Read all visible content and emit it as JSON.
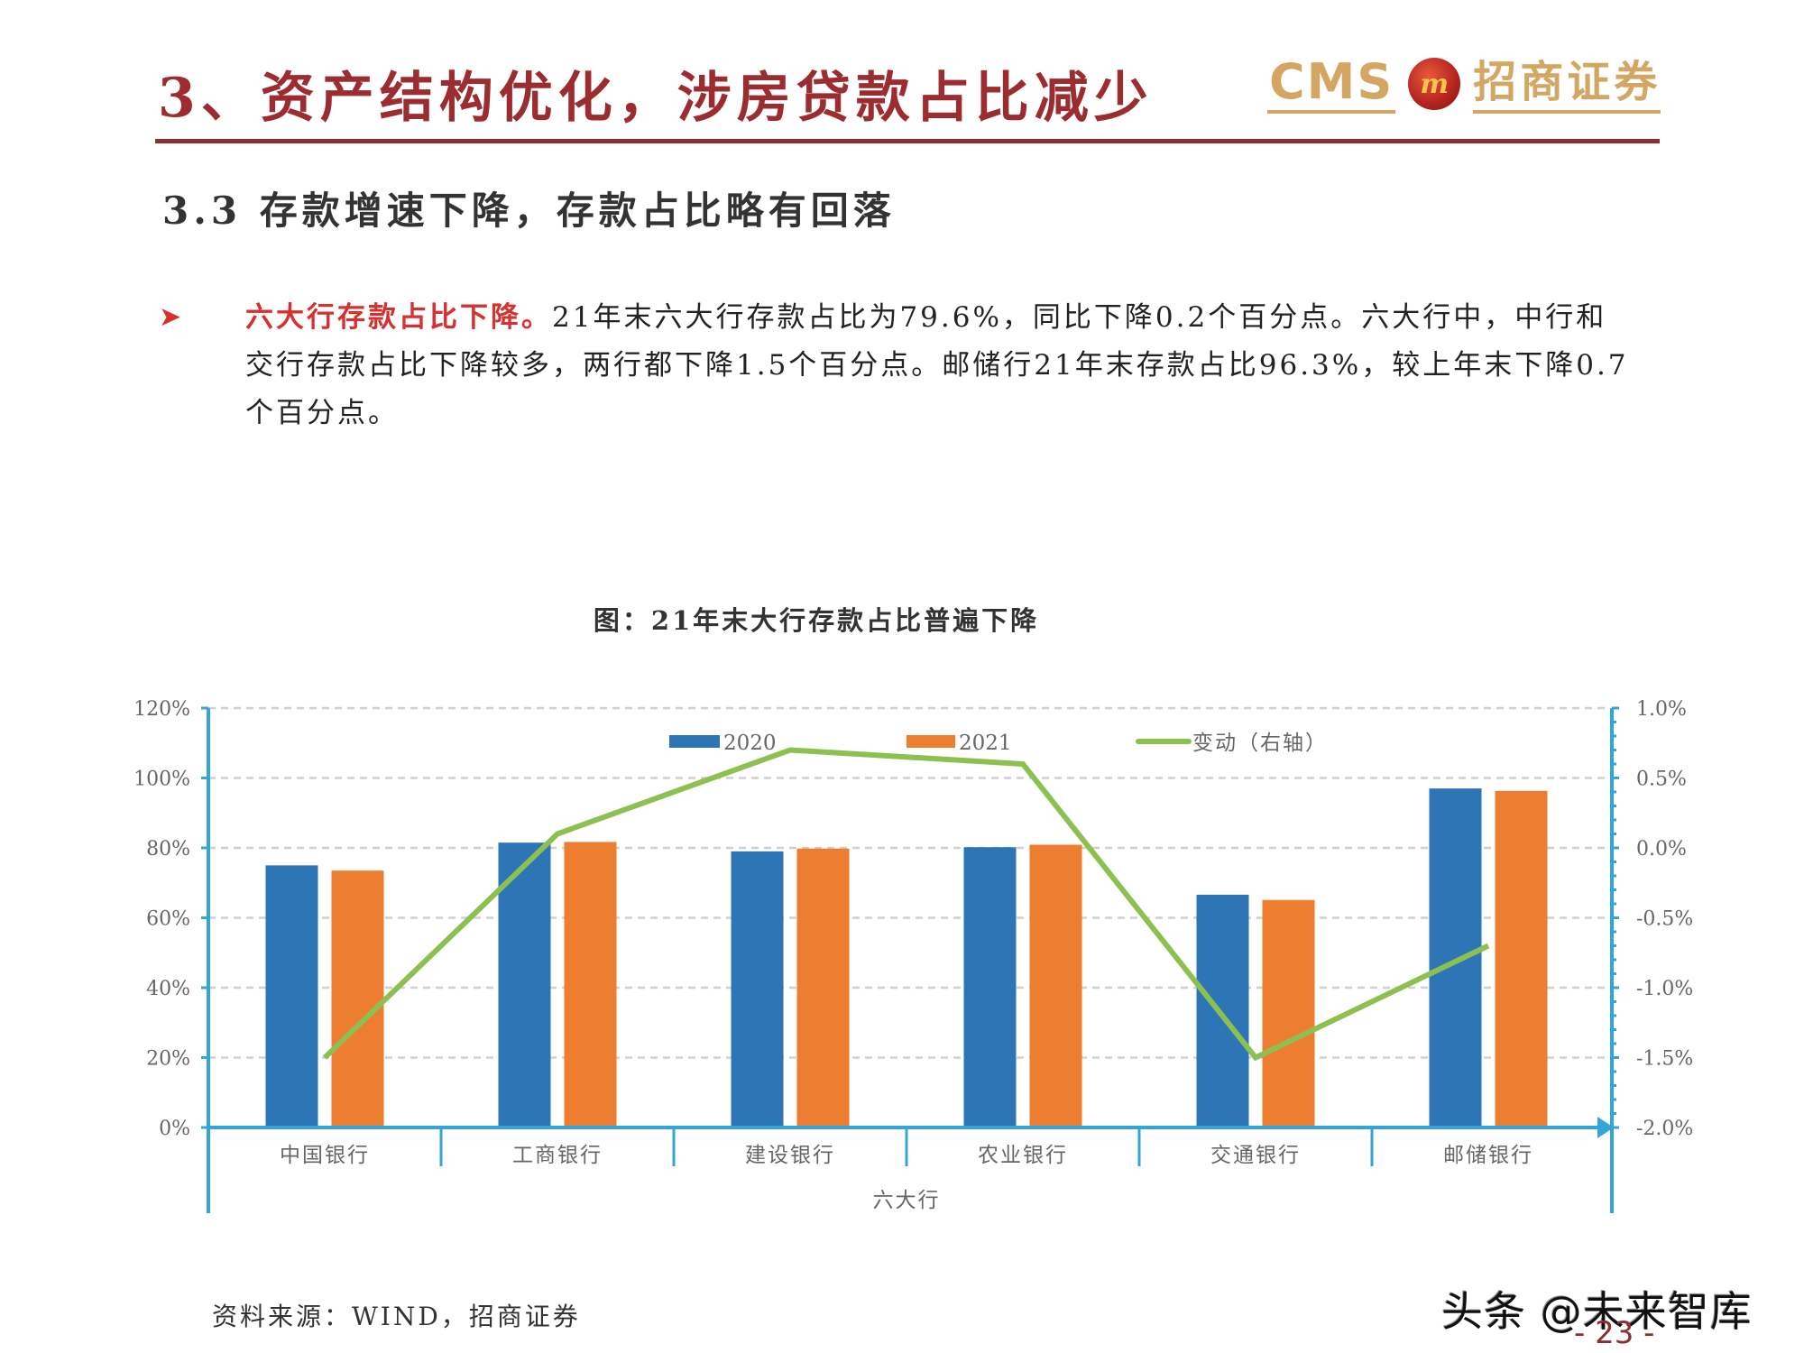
{
  "header": {
    "title": "3、资产结构优化，涉房贷款占比减少",
    "logo": {
      "latin": "CMS",
      "mark": "m",
      "chinese": "招商证券"
    }
  },
  "section": {
    "heading": "3.3 存款增速下降，存款占比略有回落"
  },
  "bullet": {
    "highlight": "六大行存款占比下降。",
    "text": "21年末六大行存款占比为79.6%，同比下降0.2个百分点。六大行中，中行和交行存款占比下降较多，两行都下降1.5个百分点。邮储行21年末存款占比96.3%，较上年末下降0.7个百分点。"
  },
  "colors": {
    "title_red": "#9b2c2f",
    "highlight_red": "#d6312f",
    "series_2020": "#2e75b6",
    "series_2021": "#ed7d31",
    "series_change": "#8cc152",
    "axis": "#33a5d8",
    "gold": "#d3a661"
  },
  "chart_data": {
    "type": "bar",
    "title": "图：21年末大行存款占比普遍下降",
    "categories": [
      "中国银行",
      "工商银行",
      "建设银行",
      "农业银行",
      "交通银行",
      "邮储银行"
    ],
    "xlabel": "六大行",
    "ylabel": "",
    "series": [
      {
        "name": "2020",
        "type": "bar",
        "axis": "left",
        "values": [
          75.0,
          81.5,
          79.0,
          80.2,
          66.6,
          97.0
        ]
      },
      {
        "name": "2021",
        "type": "bar",
        "axis": "left",
        "values": [
          73.5,
          81.7,
          79.8,
          80.9,
          65.1,
          96.3
        ]
      },
      {
        "name": "变动（右轴）",
        "type": "line",
        "axis": "right",
        "values": [
          -1.5,
          0.1,
          0.7,
          0.6,
          -1.5,
          -0.7
        ]
      }
    ],
    "ylim": [
      0,
      120
    ],
    "y_ticks": [
      "0%",
      "20%",
      "40%",
      "60%",
      "80%",
      "100%",
      "120%"
    ],
    "y2lim": [
      -2.0,
      1.0
    ],
    "y2_ticks": [
      "-2.0%",
      "-1.5%",
      "-1.0%",
      "-0.5%",
      "0.0%",
      "0.5%",
      "1.0%"
    ],
    "legend": {
      "position": "top",
      "entries": [
        "2020",
        "2021",
        "变动（右轴）"
      ]
    },
    "grid": true
  },
  "footer": {
    "source": "资料来源：WIND，招商证券",
    "watermark": "头条 @未来智库",
    "page": "- 23 -"
  }
}
